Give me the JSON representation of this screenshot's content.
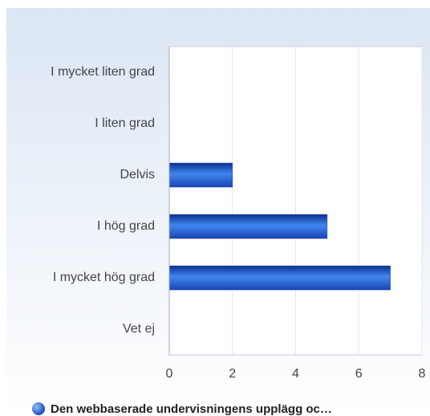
{
  "chart_data": {
    "type": "bar",
    "orientation": "horizontal",
    "categories": [
      "I mycket liten grad",
      "I liten grad",
      "Delvis",
      "I hög grad",
      "I mycket hög grad",
      "Vet ej"
    ],
    "series": [
      {
        "name": "Den webbaserade undervisningens upplägg oc…",
        "color": "#1f4fc4",
        "values": [
          0,
          0,
          2,
          5,
          7,
          0
        ]
      }
    ],
    "xlim": [
      0,
      8
    ],
    "xticks": [
      0,
      2,
      4,
      6,
      8
    ],
    "grid": true,
    "legend": "bottom"
  }
}
